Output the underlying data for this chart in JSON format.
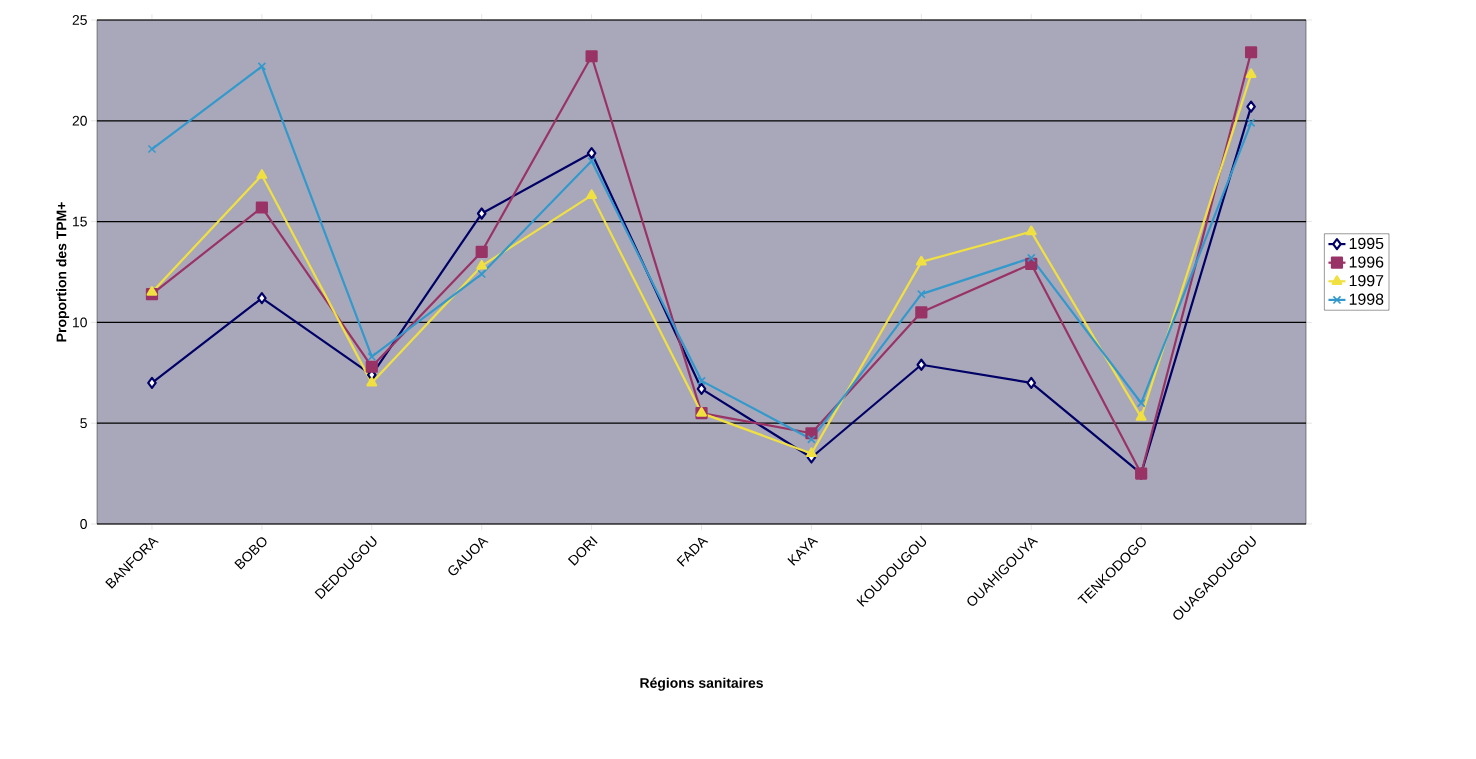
{
  "chart_data": {
    "type": "line",
    "xlabel": "Régions sanitaires",
    "ylabel": "Proportion des TPM+",
    "categories": [
      "BANFORA",
      "BOBO",
      "DEDOUGOU",
      "GAUOA",
      "DORI",
      "FADA",
      "KAYA",
      "KOUDOUGOU",
      "OUAHIGOUYA",
      "TENKODOGO",
      "OUAGADOUGOU"
    ],
    "series": [
      {
        "name": "1995",
        "color": "#000066",
        "marker": "diamond",
        "values": [
          7.0,
          11.2,
          7.4,
          15.4,
          18.4,
          6.7,
          3.3,
          7.9,
          7.0,
          2.5,
          20.7
        ]
      },
      {
        "name": "1996",
        "color": "#993366",
        "marker": "square",
        "values": [
          11.4,
          15.7,
          7.8,
          13.5,
          23.2,
          5.5,
          4.5,
          10.5,
          12.9,
          2.5,
          23.4
        ]
      },
      {
        "name": "1997",
        "color": "#f0e040",
        "marker": "triangle",
        "values": [
          11.5,
          17.3,
          7.0,
          12.8,
          16.3,
          5.5,
          3.5,
          13.0,
          14.5,
          5.3,
          22.3
        ]
      },
      {
        "name": "1998",
        "color": "#3399cc",
        "marker": "cross",
        "values": [
          18.6,
          22.7,
          8.3,
          12.4,
          18.0,
          7.1,
          4.2,
          11.4,
          13.2,
          6.0,
          19.9
        ]
      }
    ],
    "ylim": [
      0,
      25
    ],
    "yticks": [
      0,
      5,
      10,
      15,
      20,
      25
    ],
    "grid": "y",
    "legend": "right",
    "line_style": "solid"
  }
}
